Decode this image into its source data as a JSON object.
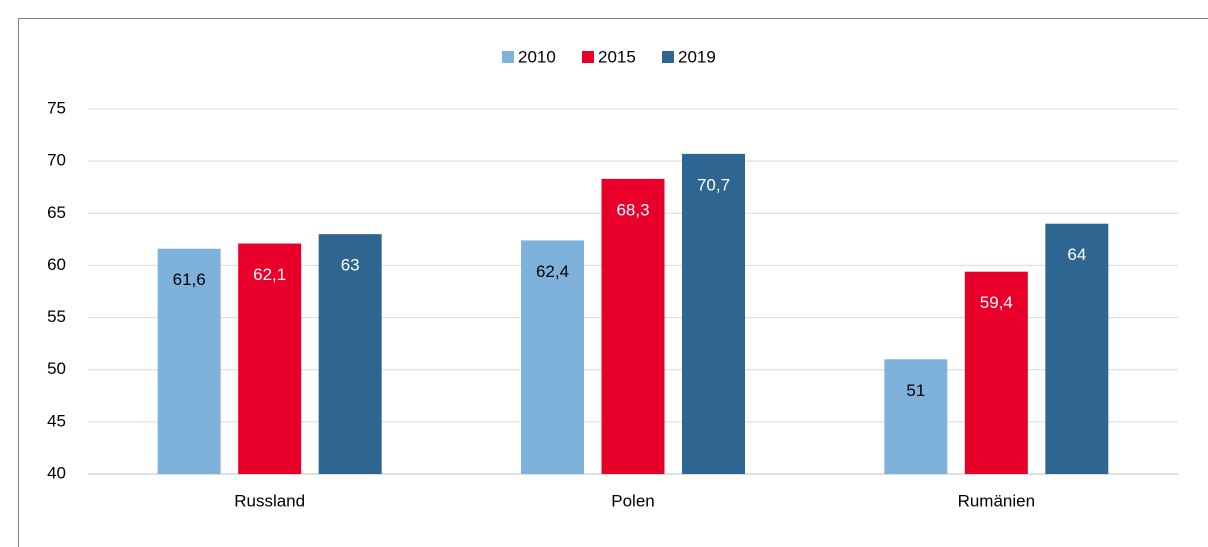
{
  "chart_data": {
    "type": "bar",
    "categories": [
      "Russland",
      "Polen",
      "Rumänien"
    ],
    "series": [
      {
        "name": "2010",
        "color": "#7fb2da",
        "label_color": "#000000",
        "values": [
          61.6,
          62.4,
          51
        ],
        "value_labels": [
          "61,6",
          "62,4",
          "51"
        ]
      },
      {
        "name": "2015",
        "color": "#e8002a",
        "label_color": "#ffffff",
        "values": [
          62.1,
          68.3,
          59.4
        ],
        "value_labels": [
          "62,1",
          "68,3",
          "59,4"
        ]
      },
      {
        "name": "2019",
        "color": "#2e6691",
        "label_color": "#ffffff",
        "values": [
          63,
          70.7,
          64
        ],
        "value_labels": [
          "63",
          "70,7",
          "64"
        ]
      }
    ],
    "ylim": [
      40,
      75
    ],
    "yticks": [
      40,
      45,
      50,
      55,
      60,
      65,
      70,
      75
    ],
    "grid": true,
    "legend": "top"
  }
}
